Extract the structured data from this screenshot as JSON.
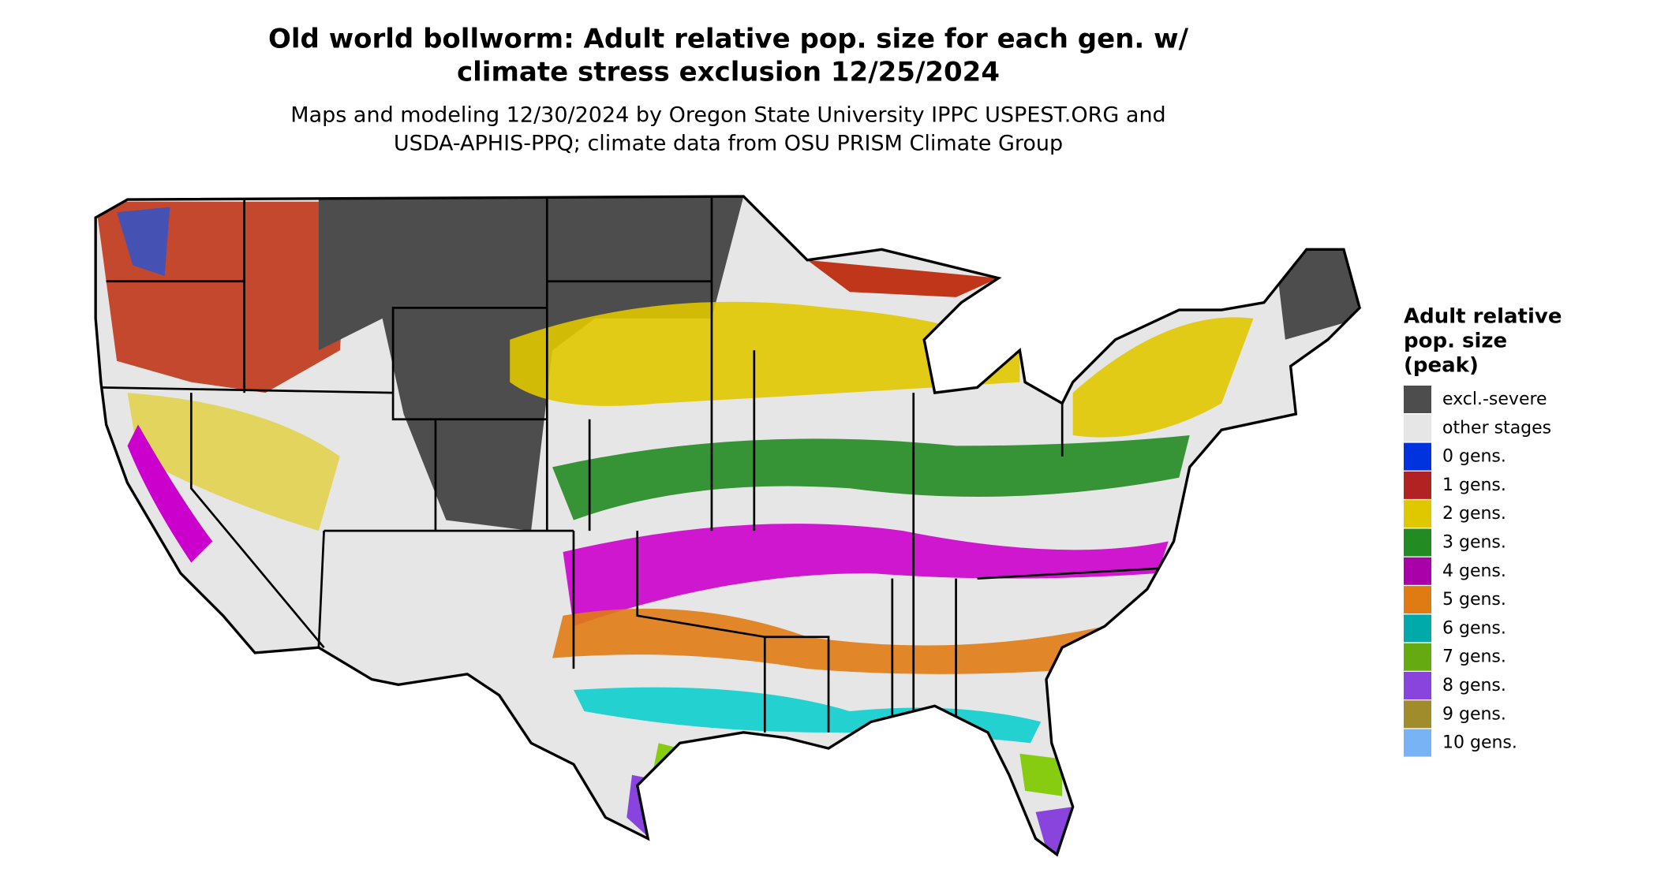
{
  "header": {
    "title": [
      "Old world bollworm: Adult relative pop. size for each gen. w/",
      "climate stress exclusion 12/25/2024"
    ],
    "subtitle": [
      "Maps and modeling 12/30/2024 by Oregon State University IPPC USPEST.ORG and",
      "USDA-APHIS-PPQ; climate data from OSU PRISM Climate Group"
    ]
  },
  "legend": {
    "title": [
      "Adult relative",
      "pop. size",
      "(peak)"
    ],
    "items": [
      {
        "label": "excl.-severe",
        "color": "#4d4d4d"
      },
      {
        "label": "other stages",
        "color": "#e6e6e6"
      },
      {
        "label": "0 gens.",
        "color": "#0033dd"
      },
      {
        "label": "1 gens.",
        "color": "#b22222"
      },
      {
        "label": "2 gens.",
        "color": "#e0c800"
      },
      {
        "label": "3 gens.",
        "color": "#228b22"
      },
      {
        "label": "4 gens.",
        "color": "#aa00aa"
      },
      {
        "label": "5 gens.",
        "color": "#e07b14"
      },
      {
        "label": "6 gens.",
        "color": "#00aaaa"
      },
      {
        "label": "7 gens.",
        "color": "#66aa11"
      },
      {
        "label": "8 gens.",
        "color": "#8844dd"
      },
      {
        "label": "9 gens.",
        "color": "#a08c2a"
      },
      {
        "label": "10 gens.",
        "color": "#77b3f5"
      }
    ]
  }
}
